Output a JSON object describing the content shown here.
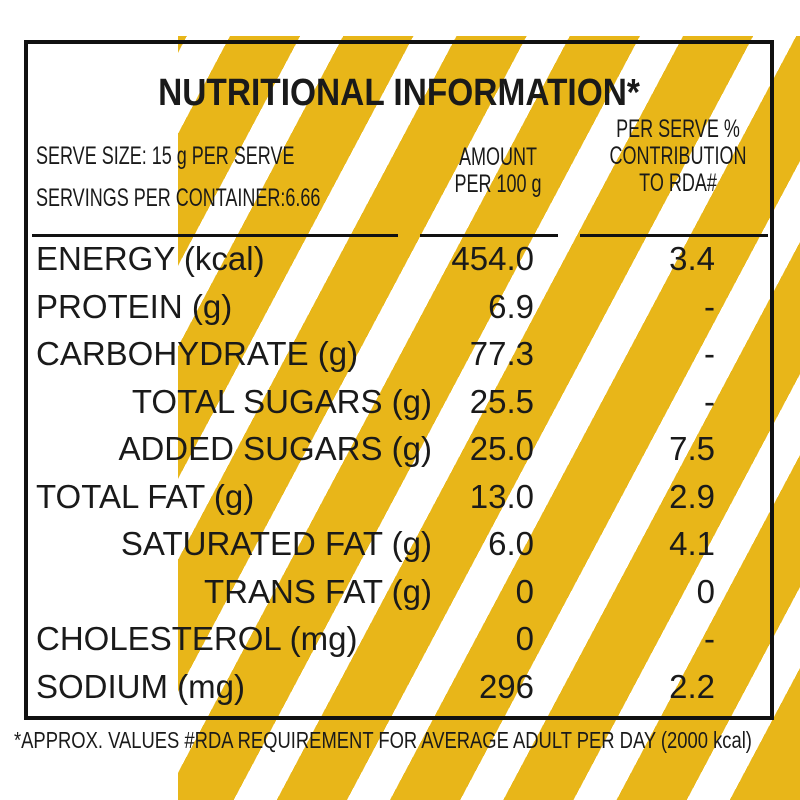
{
  "title": "NUTRITIONAL INFORMATION*",
  "serve_info": [
    "SERVE SIZE: 15 g PER SERVE",
    "SERVINGS PER CONTAINER:6.66"
  ],
  "columns": {
    "amount": [
      "AMOUNT",
      "PER 100 g"
    ],
    "rda": [
      "PER SERVE %",
      "CONTRIBUTION",
      "TO RDA#"
    ]
  },
  "rows": [
    [
      "ENERGY (kcal)",
      "454.0",
      "3.4"
    ],
    [
      "PROTEIN (g)",
      "6.9",
      "-"
    ],
    [
      "CARBOHYDRATE (g)",
      "77.3",
      "-"
    ],
    [
      "TOTAL SUGARS (g)",
      "25.5",
      "-"
    ],
    [
      "ADDED SUGARS (g)",
      "25.0",
      "7.5"
    ],
    [
      "TOTAL FAT (g)",
      "13.0",
      "2.9"
    ],
    [
      "SATURATED FAT (g)",
      "6.0",
      "4.1"
    ],
    [
      "TRANS FAT (g)",
      "0",
      "0"
    ],
    [
      "CHOLESTEROL (mg)",
      "0",
      "-"
    ],
    [
      "SODIUM (mg)",
      "296",
      "2.2"
    ]
  ],
  "footnote": "*APPROX. VALUES  #RDA REQUIREMENT FOR AVERAGE ADULT PER DAY (2000 kcal)"
}
